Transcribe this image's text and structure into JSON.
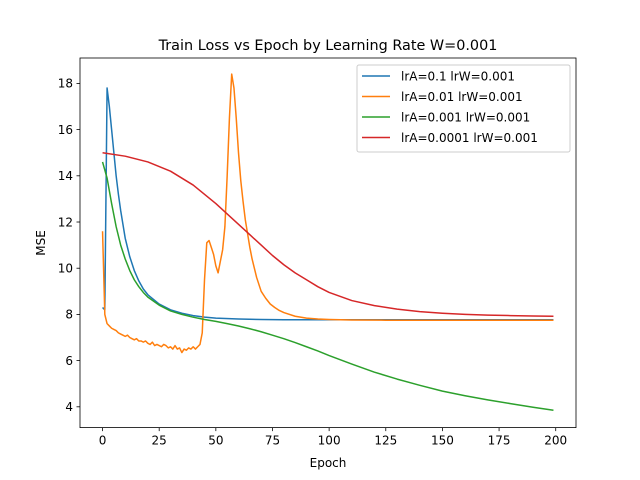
{
  "chart_data": {
    "type": "line",
    "title": "Train Loss vs Epoch by Learning Rate W=0.001",
    "xlabel": "Epoch",
    "ylabel": "MSE",
    "xlim": [
      -9.95,
      208.95
    ],
    "ylim": [
      3.1,
      19.1
    ],
    "xticks": [
      0,
      25,
      50,
      75,
      100,
      125,
      150,
      175,
      200
    ],
    "yticks": [
      4,
      6,
      8,
      10,
      12,
      14,
      16,
      18
    ],
    "grid": false,
    "legend_position": "top-right",
    "series": [
      {
        "name": "lrA=0.1 lrW=0.001",
        "color": "#1f77b4",
        "x": [
          0,
          1,
          2,
          3,
          4,
          5,
          6,
          7,
          8,
          10,
          12,
          14,
          16,
          18,
          20,
          25,
          30,
          35,
          40,
          45,
          50,
          60,
          70,
          80,
          90,
          100,
          125,
          150,
          175,
          199
        ],
        "y": [
          8.3,
          8.2,
          17.8,
          17.0,
          16.0,
          15.0,
          14.0,
          13.2,
          12.5,
          11.3,
          10.5,
          9.9,
          9.45,
          9.1,
          8.85,
          8.45,
          8.2,
          8.05,
          7.95,
          7.88,
          7.84,
          7.8,
          7.78,
          7.77,
          7.77,
          7.77,
          7.77,
          7.77,
          7.77,
          7.77
        ]
      },
      {
        "name": "lrA=0.01 lrW=0.001",
        "color": "#ff7f0e",
        "x": [
          0,
          1,
          2,
          3,
          4,
          5,
          6,
          7,
          8,
          9,
          10,
          11,
          12,
          13,
          14,
          15,
          16,
          17,
          18,
          19,
          20,
          21,
          22,
          23,
          24,
          25,
          26,
          27,
          28,
          29,
          30,
          31,
          32,
          33,
          34,
          35,
          36,
          37,
          38,
          39,
          40,
          41,
          42,
          43,
          44,
          45,
          46,
          47,
          48,
          49,
          50,
          51,
          52,
          53,
          54,
          55,
          56,
          57,
          58,
          59,
          60,
          61,
          62,
          63,
          64,
          65,
          66,
          67,
          68,
          70,
          72,
          74,
          76,
          78,
          80,
          85,
          90,
          95,
          100,
          110,
          125,
          150,
          175,
          199
        ],
        "y": [
          11.6,
          8.0,
          7.6,
          7.5,
          7.4,
          7.35,
          7.3,
          7.2,
          7.15,
          7.1,
          7.05,
          7.1,
          7.0,
          6.95,
          6.9,
          6.95,
          6.85,
          6.85,
          6.8,
          6.85,
          6.75,
          6.7,
          6.8,
          6.65,
          6.7,
          6.65,
          6.6,
          6.7,
          6.65,
          6.55,
          6.6,
          6.5,
          6.65,
          6.5,
          6.55,
          6.35,
          6.5,
          6.45,
          6.55,
          6.5,
          6.6,
          6.5,
          6.6,
          6.7,
          7.2,
          9.5,
          11.1,
          11.2,
          10.9,
          10.6,
          10.1,
          9.8,
          10.3,
          10.8,
          11.8,
          14.0,
          16.5,
          18.4,
          17.8,
          16.5,
          15.0,
          13.8,
          12.9,
          12.1,
          11.5,
          10.9,
          10.4,
          10.0,
          9.6,
          9.0,
          8.7,
          8.45,
          8.3,
          8.17,
          8.08,
          7.92,
          7.84,
          7.8,
          7.78,
          7.76,
          7.75,
          7.75,
          7.75,
          7.75
        ]
      },
      {
        "name": "lrA=0.001 lrW=0.001",
        "color": "#2ca02c",
        "x": [
          0,
          2,
          4,
          6,
          8,
          10,
          12,
          14,
          16,
          18,
          20,
          25,
          30,
          35,
          40,
          45,
          50,
          55,
          60,
          65,
          70,
          75,
          80,
          85,
          90,
          95,
          100,
          110,
          120,
          130,
          140,
          150,
          160,
          170,
          180,
          190,
          199
        ],
        "y": [
          14.6,
          13.9,
          12.8,
          11.8,
          11.0,
          10.4,
          9.9,
          9.5,
          9.2,
          8.95,
          8.75,
          8.4,
          8.15,
          8.0,
          7.88,
          7.78,
          7.7,
          7.6,
          7.5,
          7.38,
          7.25,
          7.1,
          6.95,
          6.78,
          6.6,
          6.42,
          6.22,
          5.85,
          5.5,
          5.2,
          4.93,
          4.68,
          4.48,
          4.3,
          4.14,
          3.98,
          3.85
        ]
      },
      {
        "name": "lrA=0.0001 lrW=0.001",
        "color": "#d62728",
        "x": [
          0,
          10,
          20,
          30,
          40,
          50,
          55,
          60,
          65,
          70,
          75,
          80,
          85,
          90,
          95,
          100,
          110,
          120,
          130,
          140,
          150,
          160,
          170,
          180,
          190,
          199
        ],
        "y": [
          15.0,
          14.85,
          14.6,
          14.2,
          13.6,
          12.8,
          12.35,
          11.9,
          11.45,
          11.0,
          10.55,
          10.15,
          9.8,
          9.5,
          9.2,
          8.95,
          8.6,
          8.38,
          8.23,
          8.12,
          8.05,
          8.0,
          7.97,
          7.95,
          7.93,
          7.92
        ]
      }
    ]
  }
}
